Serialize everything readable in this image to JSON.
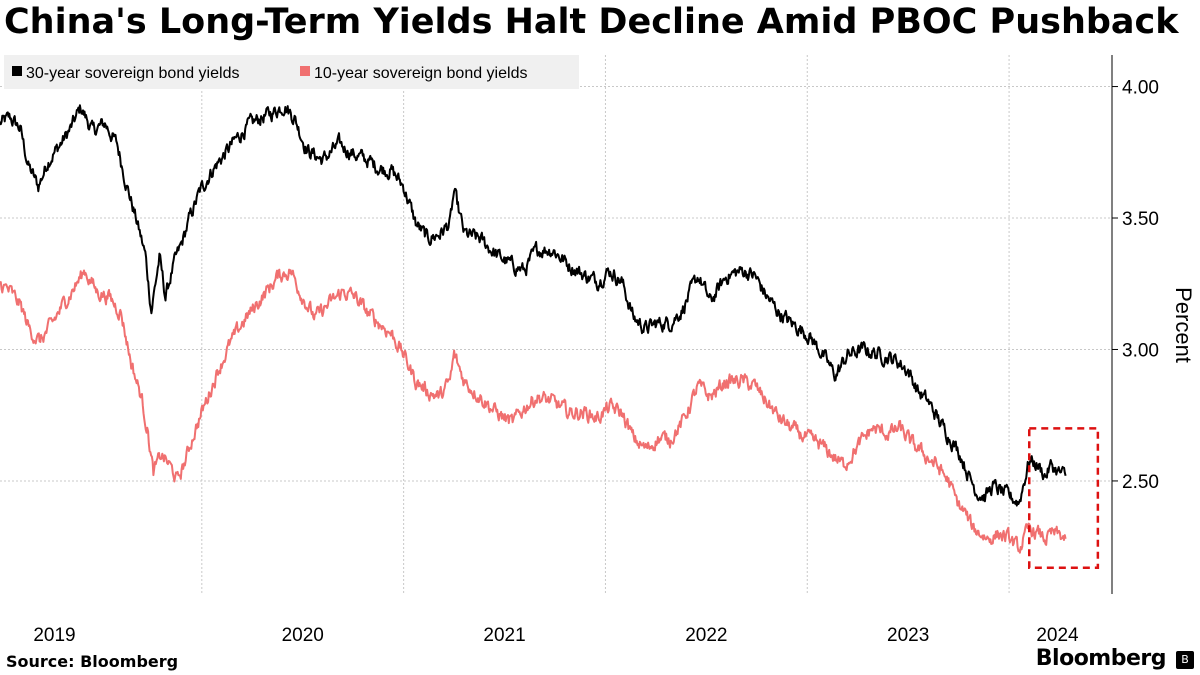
{
  "chart_data": {
    "type": "line",
    "title": "China's Long-Term Yields Halt Decline Amid PBOC Pushback",
    "ylabel": "Percent",
    "ylim": [
      2.07,
      4.12
    ],
    "yticks": [
      2.5,
      3.0,
      3.5,
      4.0
    ],
    "ytick_labels": [
      "2.50",
      "3.00",
      "3.50",
      "4.00"
    ],
    "xlim": [
      2019.0,
      2024.51
    ],
    "xticks": [
      2019.0,
      2020.0,
      2021.0,
      2022.0,
      2023.0,
      2024.0
    ],
    "xtick_labels": [
      "2019",
      "2020",
      "2021",
      "2022",
      "2023",
      "2024"
    ],
    "grid": true,
    "legend": "top-left",
    "highlight_box": {
      "x": [
        2024.1,
        2024.44
      ],
      "y": [
        2.17,
        2.7
      ],
      "style": "dashed",
      "color": "#dd1111"
    },
    "series": [
      {
        "name": "30-year sovereign bond yields",
        "color": "#000000",
        "points": [
          [
            2019.0,
            3.86
          ],
          [
            2019.05,
            3.88
          ],
          [
            2019.1,
            3.84
          ],
          [
            2019.14,
            3.7
          ],
          [
            2019.19,
            3.62
          ],
          [
            2019.24,
            3.72
          ],
          [
            2019.3,
            3.78
          ],
          [
            2019.35,
            3.84
          ],
          [
            2019.4,
            3.92
          ],
          [
            2019.46,
            3.83
          ],
          [
            2019.52,
            3.86
          ],
          [
            2019.58,
            3.78
          ],
          [
            2019.63,
            3.62
          ],
          [
            2019.68,
            3.48
          ],
          [
            2019.72,
            3.36
          ],
          [
            2019.75,
            3.15
          ],
          [
            2019.79,
            3.35
          ],
          [
            2019.82,
            3.2
          ],
          [
            2019.86,
            3.32
          ],
          [
            2019.9,
            3.4
          ],
          [
            2019.94,
            3.5
          ],
          [
            2019.99,
            3.6
          ],
          [
            2020.05,
            3.68
          ],
          [
            2020.11,
            3.74
          ],
          [
            2020.17,
            3.8
          ],
          [
            2020.23,
            3.85
          ],
          [
            2020.29,
            3.88
          ],
          [
            2020.35,
            3.9
          ],
          [
            2020.41,
            3.93
          ],
          [
            2020.46,
            3.88
          ],
          [
            2020.52,
            3.76
          ],
          [
            2020.6,
            3.72
          ],
          [
            2020.68,
            3.78
          ],
          [
            2020.76,
            3.74
          ],
          [
            2020.82,
            3.72
          ],
          [
            2020.88,
            3.69
          ],
          [
            2020.94,
            3.68
          ],
          [
            2021.0,
            3.62
          ],
          [
            2021.06,
            3.48
          ],
          [
            2021.12,
            3.42
          ],
          [
            2021.18,
            3.44
          ],
          [
            2021.23,
            3.48
          ],
          [
            2021.25,
            3.6
          ],
          [
            2021.3,
            3.44
          ],
          [
            2021.38,
            3.42
          ],
          [
            2021.46,
            3.36
          ],
          [
            2021.54,
            3.32
          ],
          [
            2021.6,
            3.3
          ],
          [
            2021.66,
            3.38
          ],
          [
            2021.74,
            3.38
          ],
          [
            2021.82,
            3.32
          ],
          [
            2021.9,
            3.28
          ],
          [
            2021.96,
            3.26
          ],
          [
            2022.02,
            3.3
          ],
          [
            2022.08,
            3.26
          ],
          [
            2022.14,
            3.12
          ],
          [
            2022.2,
            3.08
          ],
          [
            2022.26,
            3.1
          ],
          [
            2022.32,
            3.1
          ],
          [
            2022.38,
            3.15
          ],
          [
            2022.46,
            3.28
          ],
          [
            2022.52,
            3.18
          ],
          [
            2022.6,
            3.28
          ],
          [
            2022.68,
            3.3
          ],
          [
            2022.74,
            3.28
          ],
          [
            2022.8,
            3.2
          ],
          [
            2022.86,
            3.14
          ],
          [
            2022.92,
            3.1
          ],
          [
            2023.0,
            3.06
          ],
          [
            2023.06,
            3.0
          ],
          [
            2023.1,
            2.95
          ],
          [
            2023.14,
            2.9
          ],
          [
            2023.2,
            2.98
          ],
          [
            2023.28,
            3.0
          ],
          [
            2023.36,
            2.98
          ],
          [
            2023.44,
            2.96
          ],
          [
            2023.5,
            2.92
          ],
          [
            2023.55,
            2.84
          ],
          [
            2023.6,
            2.8
          ],
          [
            2023.66,
            2.72
          ],
          [
            2023.72,
            2.65
          ],
          [
            2023.76,
            2.6
          ],
          [
            2023.8,
            2.52
          ],
          [
            2023.84,
            2.46
          ],
          [
            2023.88,
            2.44
          ],
          [
            2023.92,
            2.48
          ],
          [
            2023.96,
            2.46
          ],
          [
            2024.0,
            2.44
          ],
          [
            2024.05,
            2.42
          ],
          [
            2024.1,
            2.58
          ],
          [
            2024.14,
            2.56
          ],
          [
            2024.18,
            2.52
          ],
          [
            2024.21,
            2.56
          ],
          [
            2024.25,
            2.53
          ],
          [
            2024.28,
            2.52
          ]
        ]
      },
      {
        "name": "10-year sovereign bond yields",
        "color": "#f07070",
        "points": [
          [
            2019.0,
            3.25
          ],
          [
            2019.05,
            3.22
          ],
          [
            2019.1,
            3.17
          ],
          [
            2019.15,
            3.07
          ],
          [
            2019.2,
            3.03
          ],
          [
            2019.26,
            3.1
          ],
          [
            2019.32,
            3.18
          ],
          [
            2019.38,
            3.25
          ],
          [
            2019.42,
            3.3
          ],
          [
            2019.48,
            3.22
          ],
          [
            2019.54,
            3.2
          ],
          [
            2019.6,
            3.14
          ],
          [
            2019.65,
            2.95
          ],
          [
            2019.7,
            2.82
          ],
          [
            2019.73,
            2.7
          ],
          [
            2019.76,
            2.53
          ],
          [
            2019.8,
            2.6
          ],
          [
            2019.84,
            2.56
          ],
          [
            2019.88,
            2.5
          ],
          [
            2019.92,
            2.58
          ],
          [
            2019.96,
            2.68
          ],
          [
            2020.02,
            2.8
          ],
          [
            2020.08,
            2.92
          ],
          [
            2020.14,
            3.02
          ],
          [
            2020.2,
            3.1
          ],
          [
            2020.26,
            3.16
          ],
          [
            2020.32,
            3.22
          ],
          [
            2020.38,
            3.28
          ],
          [
            2020.44,
            3.3
          ],
          [
            2020.5,
            3.2
          ],
          [
            2020.56,
            3.12
          ],
          [
            2020.64,
            3.18
          ],
          [
            2020.7,
            3.22
          ],
          [
            2020.76,
            3.2
          ],
          [
            2020.82,
            3.14
          ],
          [
            2020.88,
            3.1
          ],
          [
            2020.94,
            3.06
          ],
          [
            2021.0,
            2.98
          ],
          [
            2021.06,
            2.88
          ],
          [
            2021.12,
            2.84
          ],
          [
            2021.18,
            2.82
          ],
          [
            2021.23,
            2.88
          ],
          [
            2021.25,
            2.98
          ],
          [
            2021.3,
            2.88
          ],
          [
            2021.38,
            2.82
          ],
          [
            2021.46,
            2.76
          ],
          [
            2021.54,
            2.72
          ],
          [
            2021.6,
            2.78
          ],
          [
            2021.66,
            2.82
          ],
          [
            2021.74,
            2.8
          ],
          [
            2021.82,
            2.76
          ],
          [
            2021.9,
            2.76
          ],
          [
            2021.96,
            2.74
          ],
          [
            2022.02,
            2.78
          ],
          [
            2022.08,
            2.76
          ],
          [
            2022.14,
            2.66
          ],
          [
            2022.2,
            2.62
          ],
          [
            2022.26,
            2.66
          ],
          [
            2022.32,
            2.66
          ],
          [
            2022.38,
            2.72
          ],
          [
            2022.46,
            2.86
          ],
          [
            2022.52,
            2.82
          ],
          [
            2022.6,
            2.88
          ],
          [
            2022.68,
            2.88
          ],
          [
            2022.74,
            2.86
          ],
          [
            2022.8,
            2.8
          ],
          [
            2022.86,
            2.74
          ],
          [
            2022.92,
            2.7
          ],
          [
            2023.0,
            2.66
          ],
          [
            2023.06,
            2.64
          ],
          [
            2023.12,
            2.6
          ],
          [
            2023.18,
            2.56
          ],
          [
            2023.24,
            2.62
          ],
          [
            2023.32,
            2.7
          ],
          [
            2023.4,
            2.68
          ],
          [
            2023.46,
            2.7
          ],
          [
            2023.52,
            2.64
          ],
          [
            2023.58,
            2.6
          ],
          [
            2023.64,
            2.56
          ],
          [
            2023.7,
            2.5
          ],
          [
            2023.74,
            2.42
          ],
          [
            2023.78,
            2.38
          ],
          [
            2023.82,
            2.32
          ],
          [
            2023.86,
            2.3
          ],
          [
            2023.9,
            2.28
          ],
          [
            2023.95,
            2.3
          ],
          [
            2024.0,
            2.28
          ],
          [
            2024.05,
            2.24
          ],
          [
            2024.1,
            2.32
          ],
          [
            2024.14,
            2.3
          ],
          [
            2024.18,
            2.28
          ],
          [
            2024.22,
            2.3
          ],
          [
            2024.26,
            2.29
          ],
          [
            2024.28,
            2.28
          ]
        ]
      }
    ]
  },
  "footer": {
    "source": "Source: Bloomberg",
    "brand": "Bloomberg",
    "brand_mark": "B"
  }
}
